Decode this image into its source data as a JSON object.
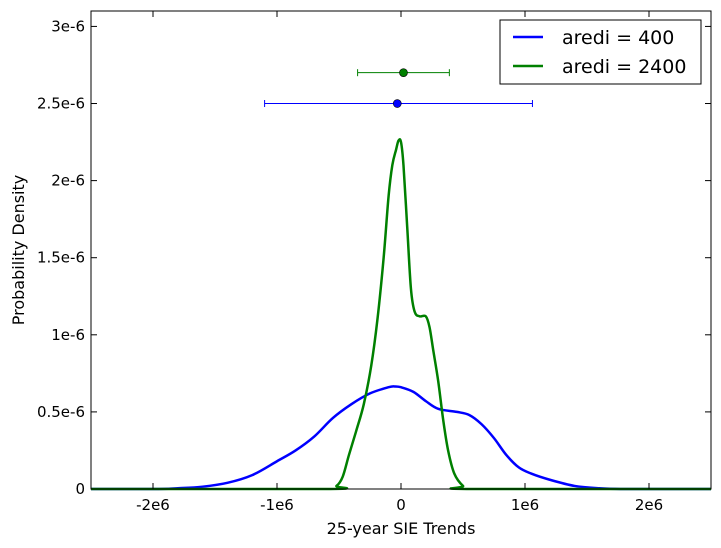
{
  "chart_data": {
    "type": "line",
    "xlabel": "25-year SIE Trends",
    "ylabel": "Probability Density",
    "xlim": [
      -2500000,
      2500000
    ],
    "ylim": [
      0,
      3.1e-06
    ],
    "xticks": [
      {
        "value": -2000000,
        "label": "-2e6"
      },
      {
        "value": -1000000,
        "label": "-1e6"
      },
      {
        "value": 0,
        "label": "0"
      },
      {
        "value": 1000000,
        "label": "1e6"
      },
      {
        "value": 2000000,
        "label": "2e6"
      }
    ],
    "yticks": [
      {
        "value": 0,
        "label": "0"
      },
      {
        "value": 5e-07,
        "label": "0.5e-6"
      },
      {
        "value": 1e-06,
        "label": "1e-6"
      },
      {
        "value": 1.5e-06,
        "label": "1.5e-6"
      },
      {
        "value": 2e-06,
        "label": "2e-6"
      },
      {
        "value": 2.5e-06,
        "label": "2.5e-6"
      },
      {
        "value": 3e-06,
        "label": "3e-6"
      }
    ],
    "legend_position": "top-right",
    "grid": false,
    "series": [
      {
        "name": "aredi = 400",
        "color": "#0000ff",
        "x": [
          -2500000,
          -2000000,
          -1800000,
          -1600000,
          -1400000,
          -1200000,
          -1000000,
          -850000,
          -700000,
          -550000,
          -400000,
          -250000,
          -100000,
          -50000,
          0,
          100000,
          200000,
          300000,
          450000,
          550000,
          650000,
          750000,
          850000,
          950000,
          1050000,
          1200000,
          1400000,
          1600000,
          1800000,
          2000000,
          2500000
        ],
        "y": [
          0,
          0,
          5e-09,
          1.5e-08,
          4e-08,
          9e-08,
          1.8e-07,
          2.5e-07,
          3.4e-07,
          4.6e-07,
          5.5e-07,
          6.2e-07,
          6.6e-07,
          6.65e-07,
          6.6e-07,
          6.3e-07,
          5.7e-07,
          5.2e-07,
          5e-07,
          4.8e-07,
          4.2e-07,
          3.3e-07,
          2.2e-07,
          1.4e-07,
          1e-07,
          6e-08,
          2e-08,
          5e-09,
          0,
          0,
          0
        ]
      },
      {
        "name": "aredi = 2400",
        "color": "#008000",
        "x": [
          -2500000,
          -600000,
          -520000,
          -470000,
          -420000,
          -360000,
          -300000,
          -240000,
          -190000,
          -140000,
          -100000,
          -70000,
          -40000,
          -20000,
          0,
          20000,
          50000,
          80000,
          110000,
          150000,
          200000,
          230000,
          260000,
          300000,
          340000,
          380000,
          430000,
          500000,
          560000,
          2500000
        ],
        "y": [
          0,
          0,
          2e-08,
          8e-08,
          2.2e-07,
          3.8e-07,
          5.5e-07,
          8e-07,
          1.1e-06,
          1.5e-06,
          1.9e-06,
          2.1e-06,
          2.2e-06,
          2.26e-06,
          2.25e-06,
          2.1e-06,
          1.7e-06,
          1.3e-06,
          1.15e-06,
          1.12e-06,
          1.12e-06,
          1.05e-06,
          9e-07,
          7e-07,
          4.5e-07,
          2.5e-07,
          1e-07,
          2e-08,
          0,
          0
        ]
      }
    ],
    "error_bars": [
      {
        "series": "aredi = 400",
        "x": -30000,
        "y": 2.5e-06,
        "xerr_low": -1100000,
        "xerr_high": 1060000,
        "color": "#0000ff"
      },
      {
        "series": "aredi = 2400",
        "x": 20000,
        "y": 2.7e-06,
        "xerr_low": -350000,
        "xerr_high": 390000,
        "color": "#008000"
      }
    ]
  }
}
